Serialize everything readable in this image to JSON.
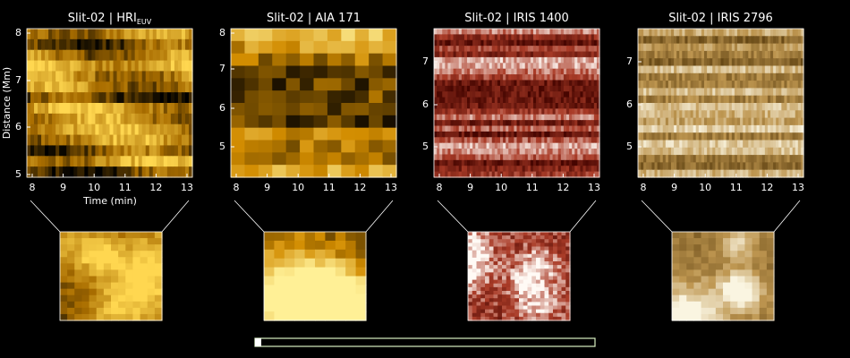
{
  "panels": [
    {
      "title": "Slit-02 | HRI",
      "title_sub": "EUV",
      "y_label": "Distance (Mm)",
      "x_label": "Time (min)",
      "yticks": [
        5,
        6,
        7,
        8
      ],
      "xticks": [
        8,
        9,
        10,
        11,
        12,
        13
      ]
    },
    {
      "title": "Slit-02 | AIA 171",
      "yticks": [
        5,
        6,
        7,
        8
      ],
      "xticks": [
        8,
        9,
        10,
        11,
        12,
        13
      ]
    },
    {
      "title": "Slit-02 | IRIS 1400",
      "yticks": [
        5,
        6,
        7
      ],
      "xticks": [
        8,
        9,
        10,
        11,
        12,
        13
      ]
    },
    {
      "title": "Slit-02 | IRIS 2796",
      "yticks": [
        5,
        6,
        7
      ],
      "xticks": [
        8,
        9,
        10,
        11,
        12,
        13
      ]
    }
  ]
}
